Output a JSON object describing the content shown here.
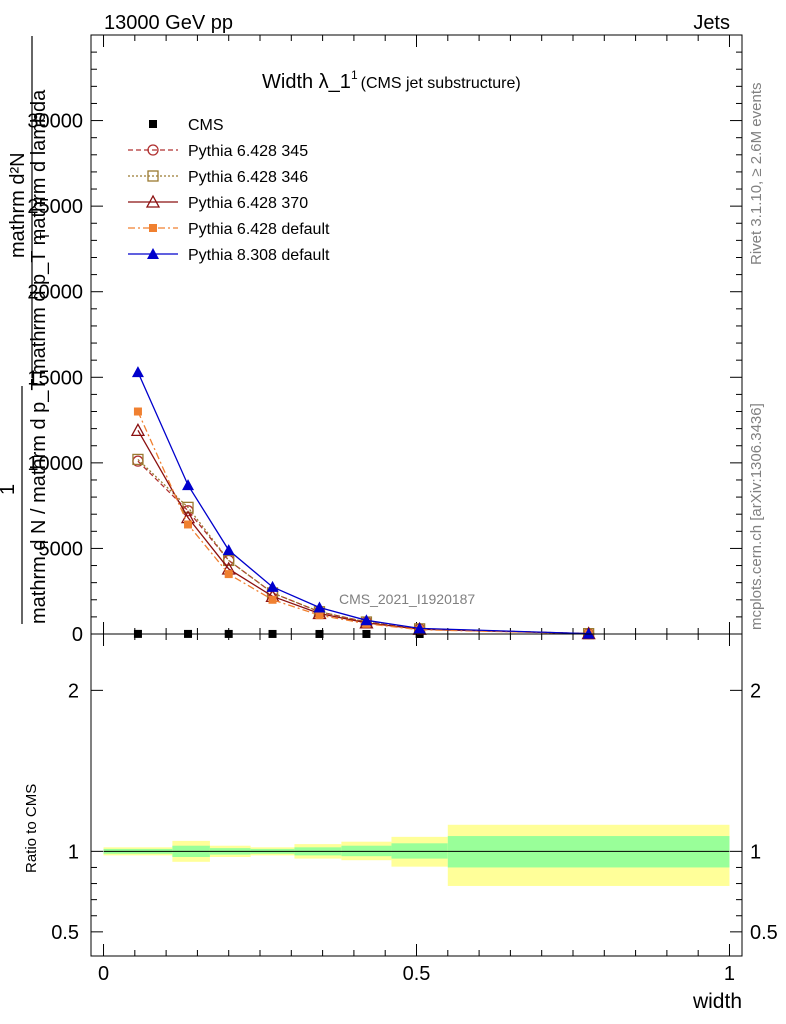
{
  "header": {
    "energy_label": "13000 GeV pp",
    "category_label": "Jets"
  },
  "side": {
    "rivet_label": "Rivet 3.1.10, ≥ 2.6M events",
    "mcplots_label": "mcplots.cern.ch [arXiv:1306.3436]"
  },
  "chart_data": [
    {
      "type": "line",
      "title": "Width λ_1",
      "title_sup": "1",
      "subtitle": "(CMS jet substructure)",
      "watermark": "CMS_2021_I1920187",
      "ylabel_num": "mathrm d²N",
      "ylabel_den": "mathrm d p_T mathrm d lambda",
      "ylabel_prefix_num": "1",
      "ylabel_prefix_den": "mathrm d N / mathrm d p_T",
      "ylabel_den_sub": "T",
      "xlim": [
        -0.02,
        1.02
      ],
      "ylim": [
        0,
        35000
      ],
      "yticks": [
        0,
        5000,
        10000,
        15000,
        20000,
        25000,
        30000
      ],
      "ytick_labels": [
        "0",
        "5000",
        "10000",
        "15000",
        "20000",
        "25000",
        "30000"
      ],
      "x": [
        0.055,
        0.135,
        0.2,
        0.27,
        0.345,
        0.42,
        0.505,
        0.775
      ],
      "series": [
        {
          "name": "CMS",
          "color": "#000000",
          "marker": "square-filled",
          "dash": "",
          "values": [
            6,
            5,
            4,
            3,
            2,
            1.5,
            0.5,
            0.1
          ]
        },
        {
          "name": "Pythia 6.428 345",
          "color": "#b03030",
          "marker": "circle-open",
          "dash": "5,3",
          "values": [
            10100,
            7200,
            4300,
            2400,
            1300,
            700,
            300,
            20
          ]
        },
        {
          "name": "Pythia 6.428 346",
          "color": "#9a7a30",
          "marker": "square-open",
          "dash": "2,2",
          "values": [
            10200,
            7400,
            4300,
            2400,
            1300,
            700,
            300,
            20
          ]
        },
        {
          "name": "Pythia 6.428 370",
          "color": "#8b1010",
          "marker": "triangle-open",
          "dash": "",
          "values": [
            11900,
            6800,
            3800,
            2200,
            1200,
            650,
            280,
            20
          ]
        },
        {
          "name": "Pythia 6.428 default",
          "color": "#f08030",
          "marker": "square-filled",
          "dash": "7,3,2,3",
          "values": [
            13000,
            6400,
            3500,
            2000,
            1100,
            600,
            250,
            20
          ]
        },
        {
          "name": "Pythia 8.308 default",
          "color": "#0000cc",
          "marker": "triangle-filled",
          "dash": "",
          "values": [
            15300,
            8700,
            4900,
            2750,
            1550,
            800,
            330,
            20
          ]
        }
      ]
    },
    {
      "type": "area",
      "ylabel": "Ratio to CMS",
      "xlabel": "width",
      "xlim": [
        -0.02,
        1.02
      ],
      "ylim": [
        0.35,
        2.35
      ],
      "yticks": [
        0.5,
        1,
        2
      ],
      "ytick_labels": [
        "0.5",
        "1",
        "2"
      ],
      "xticks": [
        0,
        0.5,
        1
      ],
      "xtick_labels": [
        "0",
        "0.5",
        "1"
      ],
      "band_colors": {
        "inner": "#99ff99",
        "outer": "#ffff99"
      },
      "bins": [
        {
          "lo": 0.0,
          "hi": 0.11,
          "inner": [
            0.985,
            1.015
          ],
          "outer": [
            0.975,
            1.025
          ]
        },
        {
          "lo": 0.11,
          "hi": 0.17,
          "inner": [
            0.965,
            1.035
          ],
          "outer": [
            0.935,
            1.065
          ]
        },
        {
          "lo": 0.17,
          "hi": 0.235,
          "inner": [
            0.98,
            1.02
          ],
          "outer": [
            0.965,
            1.035
          ]
        },
        {
          "lo": 0.235,
          "hi": 0.305,
          "inner": [
            0.985,
            1.015
          ],
          "outer": [
            0.975,
            1.025
          ]
        },
        {
          "lo": 0.305,
          "hi": 0.38,
          "inner": [
            0.975,
            1.025
          ],
          "outer": [
            0.955,
            1.045
          ]
        },
        {
          "lo": 0.38,
          "hi": 0.46,
          "inner": [
            0.97,
            1.035
          ],
          "outer": [
            0.945,
            1.06
          ]
        },
        {
          "lo": 0.46,
          "hi": 0.55,
          "inner": [
            0.955,
            1.05
          ],
          "outer": [
            0.905,
            1.09
          ]
        },
        {
          "lo": 0.55,
          "hi": 1.0,
          "inner": [
            0.9,
            1.095
          ],
          "outer": [
            0.785,
            1.165
          ]
        }
      ]
    }
  ]
}
